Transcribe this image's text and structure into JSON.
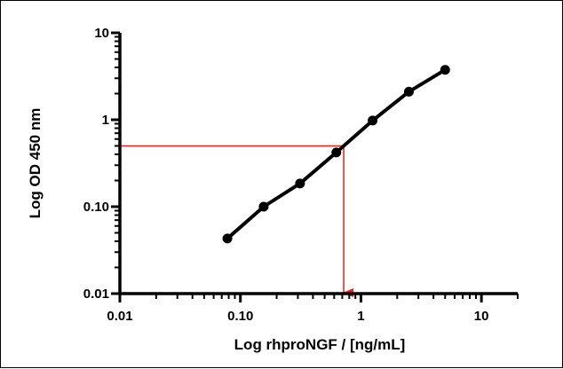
{
  "chart_data": {
    "type": "line",
    "title": "",
    "xlabel": "Log rhproNGF / [ng/mL]",
    "ylabel": "Log OD 450 nm",
    "xscale": "log",
    "yscale": "log",
    "xlim": [
      0.01,
      20
    ],
    "ylim": [
      0.01,
      10
    ],
    "x_ticks": [
      {
        "value": 0.01,
        "label": "0.01"
      },
      {
        "value": 0.1,
        "label": "0.10"
      },
      {
        "value": 1,
        "label": "1"
      },
      {
        "value": 10,
        "label": "10"
      }
    ],
    "y_ticks": [
      {
        "value": 0.01,
        "label": "0.01"
      },
      {
        "value": 0.1,
        "label": "0.10"
      },
      {
        "value": 1,
        "label": "1"
      },
      {
        "value": 10,
        "label": "10"
      }
    ],
    "grid": false,
    "legend": "none",
    "series": [
      {
        "x": [
          0.078,
          0.156,
          0.3125,
          0.625,
          1.25,
          2.5,
          5
        ],
        "y": [
          0.043,
          0.1,
          0.185,
          0.42,
          0.98,
          2.1,
          3.75
        ],
        "color": "#000000",
        "marker": "circle"
      }
    ],
    "annotations": [
      {
        "type": "reference-line",
        "color": "#e0251b",
        "y_value": 0.5,
        "x_value": 0.72,
        "note_arrow": "arrow down to x-axis"
      }
    ]
  }
}
